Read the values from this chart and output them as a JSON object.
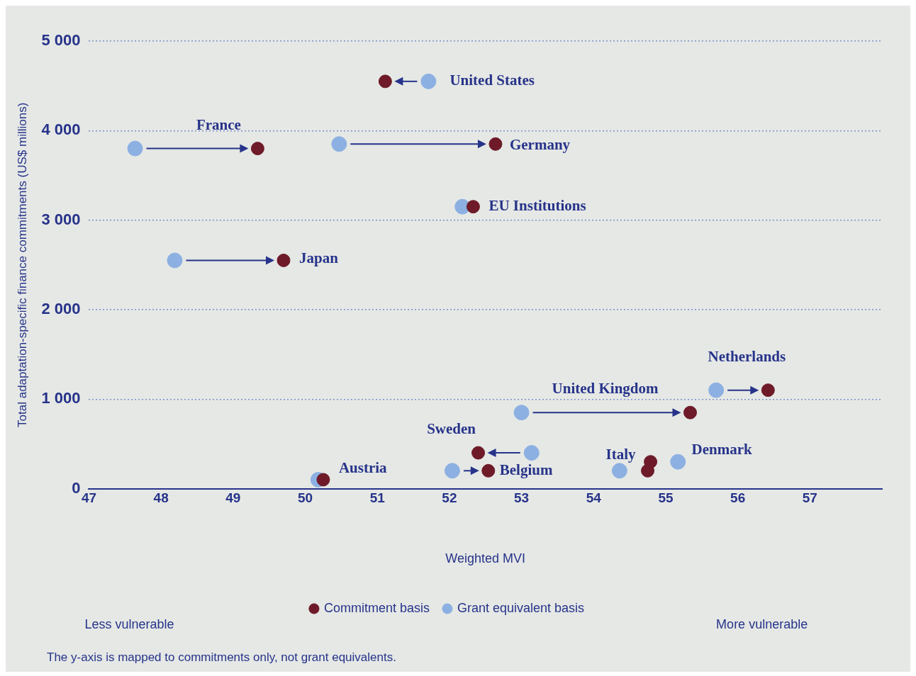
{
  "chart_data": {
    "type": "scatter",
    "xlabel": "Weighted MVI",
    "ylabel": "Total adaptation-specific finance commitments (US$ millions)",
    "xlim": [
      47,
      58
    ],
    "xticks": [
      47,
      48,
      49,
      50,
      51,
      52,
      53,
      54,
      55,
      56,
      57
    ],
    "ylim": [
      0,
      5000
    ],
    "yticks": [
      {
        "value": 0,
        "label": "0"
      },
      {
        "value": 1000,
        "label": "1 000"
      },
      {
        "value": 2000,
        "label": "2 000"
      },
      {
        "value": 3000,
        "label": "3 000"
      },
      {
        "value": 4000,
        "label": "4 000"
      },
      {
        "value": 5000,
        "label": "5 000"
      }
    ],
    "grid": "y",
    "legend": "bottom",
    "marker": "circle",
    "series": [
      {
        "name": "Commitment basis",
        "color": "#6e1a28",
        "x": [
          51.11,
          49.34,
          52.64,
          52.33,
          49.7,
          56.42,
          55.34,
          52.4,
          52.54,
          50.25,
          54.75,
          54.79
        ],
        "values": [
          4550,
          3800,
          3850,
          3150,
          2550,
          1100,
          850,
          400,
          200,
          100,
          200,
          300
        ]
      },
      {
        "name": "Grant equivalent basis",
        "color": "#8db0e2",
        "x": [
          51.71,
          47.64,
          50.47,
          52.18,
          48.19,
          55.7,
          53.0,
          53.14,
          52.04,
          50.18,
          54.36,
          55.17
        ],
        "values": [
          4550,
          3800,
          3850,
          3150,
          2550,
          1100,
          850,
          400,
          200,
          100,
          200,
          300
        ]
      }
    ],
    "annotations": [
      {
        "text": "United States",
        "x": 51.71,
        "y": 4550
      },
      {
        "text": "France",
        "x": 49.34,
        "y": 3800
      },
      {
        "text": "Germany",
        "x": 52.64,
        "y": 3850
      },
      {
        "text": "EU Institutions",
        "x": 52.33,
        "y": 3150
      },
      {
        "text": "Japan",
        "x": 49.7,
        "y": 2550
      },
      {
        "text": "Netherlands",
        "x": 56.42,
        "y": 1100
      },
      {
        "text": "United Kingdom",
        "x": 55.34,
        "y": 850
      },
      {
        "text": "Sweden",
        "x": 52.4,
        "y": 400
      },
      {
        "text": "Belgium",
        "x": 52.54,
        "y": 200
      },
      {
        "text": "Austria",
        "x": 50.25,
        "y": 100
      },
      {
        "text": "Italy",
        "x": 54.75,
        "y": 200
      },
      {
        "text": "Denmark",
        "x": 54.79,
        "y": 300
      },
      "Less vulnerable",
      "More vulnerable",
      "The y-axis is mapped to commitments only, not grant equivalents."
    ]
  }
}
